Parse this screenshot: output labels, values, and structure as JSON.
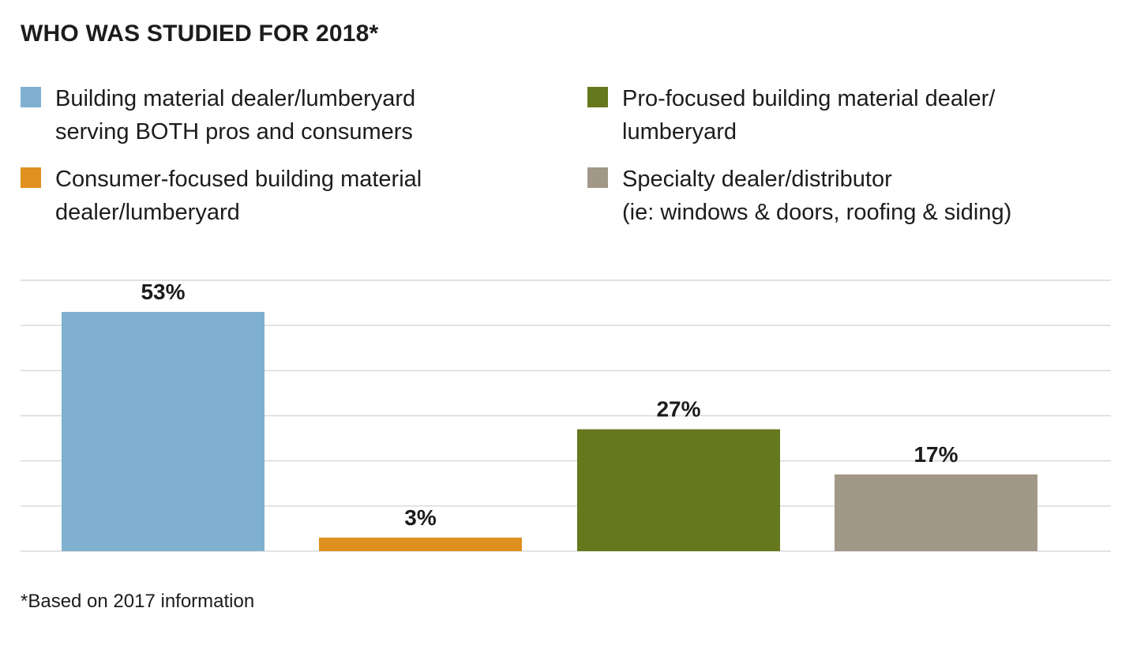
{
  "title": "WHO WAS STUDIED FOR 2018*",
  "legend": [
    {
      "lines": [
        "Building material dealer/lumberyard",
        "serving BOTH pros and consumers"
      ],
      "color": "#7fb0cf"
    },
    {
      "lines": [
        "Pro-focused building material dealer/",
        "lumberyard"
      ],
      "color": "#66781d"
    },
    {
      "lines": [
        "Consumer-focused building material",
        "dealer/lumberyard"
      ],
      "color": "#e0901e"
    },
    {
      "lines": [
        "Specialty dealer/distributor",
        "(ie: windows & doors, roofing & siding)"
      ],
      "color": "#a29888"
    }
  ],
  "footnote": "*Based on 2017 information",
  "chart_data": {
    "type": "bar",
    "categories": [
      "Building material dealer/lumberyard serving BOTH pros and consumers",
      "Consumer-focused building material dealer/lumberyard",
      "Pro-focused building material dealer/lumberyard",
      "Specialty dealer/distributor (ie: windows & doors, roofing & siding)"
    ],
    "values": [
      53,
      3,
      27,
      17
    ],
    "data_labels": [
      "53%",
      "3%",
      "27%",
      "17%"
    ],
    "colors": [
      "#7fb0cf",
      "#e0901e",
      "#66781d",
      "#a29888"
    ],
    "ylim": [
      0,
      60
    ],
    "grid": true,
    "gridline_step": 10,
    "gridline_color": "#d9d9d9",
    "axis_labels_shown": false
  }
}
